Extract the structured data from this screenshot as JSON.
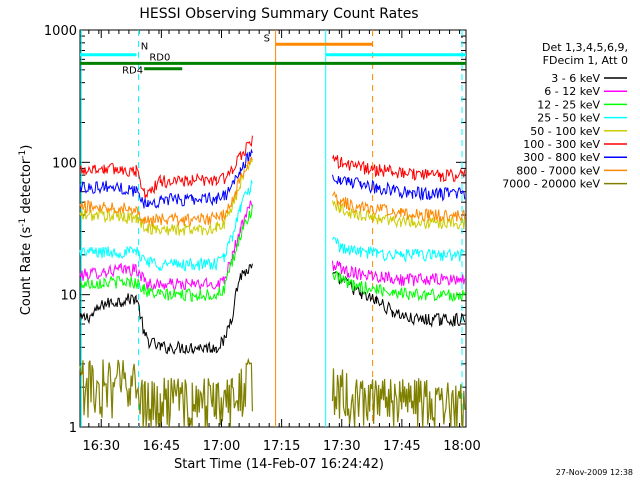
{
  "chart_data": {
    "type": "line",
    "title": "HESSI Observing Summary Count Rates",
    "xlabel": "Start Time (14-Feb-07 16:24:42)",
    "ylabel": "Count Rate (s",
    "ylabel_sup1": "-1",
    "ylabel_mid": " detector",
    "ylabel_sup2": "-1",
    "ylabel_end": ")",
    "y_scale": "log",
    "ylim": [
      1,
      1000
    ],
    "xlim": [
      "16:24:42",
      "18:01:00"
    ],
    "x_ticks": [
      "16:30",
      "16:45",
      "17:00",
      "17:15",
      "17:30",
      "17:45",
      "18:00"
    ],
    "y_ticks": [
      "1",
      "10",
      "100",
      "1000"
    ],
    "x_unit": "minutes after 16:24:42",
    "legend_header": [
      "Det 1,3,4,5,6,9,",
      "FDecim 1, Att 0"
    ],
    "series": [
      {
        "name": "3 - 6 keV",
        "color": "#000000",
        "values": [
          [
            0,
            6.5
          ],
          [
            3,
            7.0
          ],
          [
            6,
            8.5
          ],
          [
            10,
            9.0
          ],
          [
            14,
            9.5
          ],
          [
            16,
            5.0
          ],
          [
            17,
            4.5
          ],
          [
            20,
            4.0
          ],
          [
            28,
            4.0
          ],
          [
            34,
            4.0
          ],
          [
            36,
            4.5
          ],
          [
            38,
            7
          ],
          [
            40,
            14
          ],
          [
            43,
            16
          ],
          [
            60,
            0
          ],
          [
            63,
            14
          ],
          [
            65,
            13
          ],
          [
            67,
            12
          ],
          [
            70,
            10
          ],
          [
            74,
            9
          ],
          [
            78,
            7.5
          ],
          [
            80,
            7
          ],
          [
            83,
            6.5
          ],
          [
            87,
            6.5
          ],
          [
            90,
            6.5
          ],
          [
            96,
            6.5
          ]
        ]
      },
      {
        "name": "6 - 12 keV",
        "color": "#ff00ff",
        "values": [
          [
            0,
            14
          ],
          [
            6,
            15
          ],
          [
            10,
            15.5
          ],
          [
            14,
            15.5
          ],
          [
            16,
            13
          ],
          [
            17,
            12
          ],
          [
            20,
            12
          ],
          [
            28,
            12
          ],
          [
            34,
            12
          ],
          [
            36,
            13
          ],
          [
            38,
            20
          ],
          [
            40,
            30
          ],
          [
            43,
            50
          ],
          [
            60,
            0
          ],
          [
            63,
            17
          ],
          [
            65,
            16
          ],
          [
            67,
            15
          ],
          [
            70,
            14.5
          ],
          [
            74,
            14
          ],
          [
            78,
            13.5
          ],
          [
            80,
            13
          ],
          [
            83,
            13
          ],
          [
            87,
            13
          ],
          [
            90,
            13
          ],
          [
            96,
            13
          ]
        ]
      },
      {
        "name": "12 - 25 keV",
        "color": "#00ff00",
        "values": [
          [
            0,
            12
          ],
          [
            6,
            12.5
          ],
          [
            10,
            12.5
          ],
          [
            14,
            12.5
          ],
          [
            16,
            11
          ],
          [
            17,
            10.5
          ],
          [
            20,
            10
          ],
          [
            28,
            10
          ],
          [
            34,
            10
          ],
          [
            36,
            11
          ],
          [
            38,
            17
          ],
          [
            40,
            27
          ],
          [
            43,
            45
          ],
          [
            60,
            0
          ],
          [
            63,
            14
          ],
          [
            65,
            13
          ],
          [
            67,
            12
          ],
          [
            70,
            11.5
          ],
          [
            74,
            11
          ],
          [
            78,
            10.5
          ],
          [
            80,
            10.5
          ],
          [
            83,
            10
          ],
          [
            87,
            10
          ],
          [
            90,
            10
          ],
          [
            96,
            10
          ]
        ]
      },
      {
        "name": "25 - 50 keV",
        "color": "#00ffff",
        "values": [
          [
            0,
            21
          ],
          [
            6,
            21
          ],
          [
            10,
            21
          ],
          [
            14,
            21
          ],
          [
            16,
            19
          ],
          [
            17,
            18
          ],
          [
            20,
            17
          ],
          [
            28,
            17
          ],
          [
            34,
            17
          ],
          [
            36,
            19
          ],
          [
            38,
            28
          ],
          [
            40,
            45
          ],
          [
            43,
            70
          ],
          [
            60,
            0
          ],
          [
            63,
            25
          ],
          [
            65,
            23
          ],
          [
            67,
            22
          ],
          [
            70,
            21
          ],
          [
            74,
            20.5
          ],
          [
            78,
            20
          ],
          [
            80,
            20
          ],
          [
            83,
            20
          ],
          [
            87,
            20
          ],
          [
            90,
            20
          ],
          [
            96,
            20
          ]
        ]
      },
      {
        "name": "50 - 100 keV",
        "color": "#cccc00",
        "values": [
          [
            0,
            40
          ],
          [
            6,
            40
          ],
          [
            10,
            39
          ],
          [
            14,
            38
          ],
          [
            16,
            33
          ],
          [
            17,
            32
          ],
          [
            20,
            31
          ],
          [
            28,
            31
          ],
          [
            34,
            32
          ],
          [
            36,
            34
          ],
          [
            38,
            45
          ],
          [
            40,
            70
          ],
          [
            43,
            110
          ],
          [
            60,
            0
          ],
          [
            63,
            50
          ],
          [
            65,
            45
          ],
          [
            67,
            42
          ],
          [
            70,
            40
          ],
          [
            74,
            38
          ],
          [
            78,
            37
          ],
          [
            80,
            36
          ],
          [
            83,
            36
          ],
          [
            87,
            35
          ],
          [
            90,
            35
          ],
          [
            96,
            35
          ]
        ]
      },
      {
        "name": "100 - 300 keV",
        "color": "#ff0000",
        "values": [
          [
            0,
            88
          ],
          [
            6,
            90
          ],
          [
            10,
            89
          ],
          [
            14,
            86
          ],
          [
            16,
            60
          ],
          [
            17,
            58
          ],
          [
            20,
            72
          ],
          [
            28,
            73
          ],
          [
            34,
            74
          ],
          [
            36,
            76
          ],
          [
            38,
            85
          ],
          [
            40,
            110
          ],
          [
            43,
            150
          ],
          [
            60,
            0
          ],
          [
            63,
            105
          ],
          [
            65,
            100
          ],
          [
            67,
            96
          ],
          [
            70,
            92
          ],
          [
            74,
            88
          ],
          [
            78,
            85
          ],
          [
            80,
            83
          ],
          [
            83,
            82
          ],
          [
            87,
            80
          ],
          [
            90,
            80
          ],
          [
            96,
            80
          ]
        ]
      },
      {
        "name": "300 - 800 keV",
        "color": "#0000ff",
        "values": [
          [
            0,
            65
          ],
          [
            6,
            66
          ],
          [
            10,
            64
          ],
          [
            14,
            61
          ],
          [
            16,
            50
          ],
          [
            17,
            48
          ],
          [
            20,
            52
          ],
          [
            28,
            53
          ],
          [
            34,
            54
          ],
          [
            36,
            56
          ],
          [
            38,
            65
          ],
          [
            40,
            85
          ],
          [
            43,
            120
          ],
          [
            60,
            0
          ],
          [
            63,
            80
          ],
          [
            65,
            75
          ],
          [
            67,
            71
          ],
          [
            70,
            68
          ],
          [
            74,
            65
          ],
          [
            78,
            62
          ],
          [
            80,
            60
          ],
          [
            83,
            59
          ],
          [
            87,
            58
          ],
          [
            90,
            58
          ],
          [
            96,
            58
          ]
        ]
      },
      {
        "name": "800 - 7000 keV",
        "color": "#ff8800",
        "values": [
          [
            0,
            46
          ],
          [
            6,
            47
          ],
          [
            10,
            46
          ],
          [
            14,
            44
          ],
          [
            16,
            38
          ],
          [
            17,
            36
          ],
          [
            20,
            37
          ],
          [
            28,
            37
          ],
          [
            34,
            38
          ],
          [
            36,
            40
          ],
          [
            38,
            50
          ],
          [
            40,
            75
          ],
          [
            43,
            115
          ],
          [
            60,
            0
          ],
          [
            63,
            56
          ],
          [
            65,
            52
          ],
          [
            67,
            48
          ],
          [
            70,
            46
          ],
          [
            74,
            44
          ],
          [
            78,
            43
          ],
          [
            80,
            42
          ],
          [
            83,
            41
          ],
          [
            87,
            40
          ],
          [
            90,
            40
          ],
          [
            96,
            40
          ]
        ]
      },
      {
        "name": "7000 - 20000 keV",
        "color": "#808000",
        "values": [
          [
            0,
            2.2
          ],
          [
            6,
            2.2
          ],
          [
            10,
            2.2
          ],
          [
            14,
            2.2
          ],
          [
            16,
            1.6
          ],
          [
            20,
            1.6
          ],
          [
            28,
            1.6
          ],
          [
            34,
            1.6
          ],
          [
            38,
            1.7
          ],
          [
            43,
            2.5
          ],
          [
            60,
            0
          ],
          [
            63,
            2.0
          ],
          [
            70,
            1.6
          ],
          [
            80,
            1.6
          ],
          [
            90,
            1.6
          ],
          [
            96,
            1.6
          ]
        ]
      }
    ],
    "annotations": {
      "n_label": "N",
      "s_label": "S",
      "rd0_label": "RD0",
      "rd4_label": "RD4"
    },
    "footer_date": "27-Nov-2009 12:38"
  }
}
